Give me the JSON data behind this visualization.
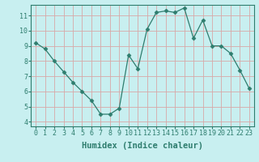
{
  "x": [
    0,
    1,
    2,
    3,
    4,
    5,
    6,
    7,
    8,
    9,
    10,
    11,
    12,
    13,
    14,
    15,
    16,
    17,
    18,
    19,
    20,
    21,
    22,
    23
  ],
  "y": [
    9.2,
    8.8,
    8.0,
    7.3,
    6.6,
    6.0,
    5.4,
    4.5,
    4.5,
    4.9,
    8.4,
    7.5,
    10.1,
    11.2,
    11.3,
    11.2,
    11.5,
    9.5,
    10.7,
    9.0,
    9.0,
    8.5,
    7.4,
    6.2
  ],
  "line_color": "#2e7d6e",
  "marker": "D",
  "marker_size": 2.5,
  "bg_color": "#c8eff0",
  "plot_bg_color": "#c8eff0",
  "grid_color": "#d8a8a8",
  "xlabel": "Humidex (Indice chaleur)",
  "xlim": [
    -0.5,
    23.5
  ],
  "ylim": [
    3.7,
    11.7
  ],
  "yticks": [
    4,
    5,
    6,
    7,
    8,
    9,
    10,
    11
  ],
  "xticks": [
    0,
    1,
    2,
    3,
    4,
    5,
    6,
    7,
    8,
    9,
    10,
    11,
    12,
    13,
    14,
    15,
    16,
    17,
    18,
    19,
    20,
    21,
    22,
    23
  ],
  "tick_fontsize": 6,
  "xlabel_fontsize": 7.5
}
